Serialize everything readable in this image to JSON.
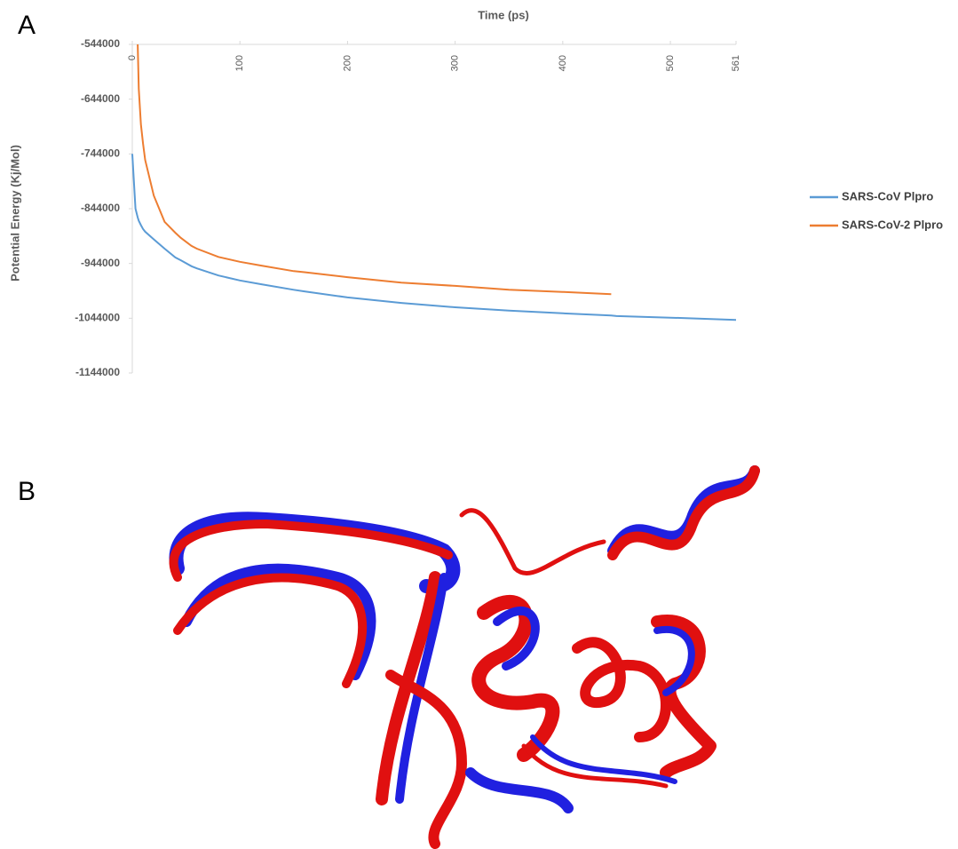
{
  "panel_labels": [
    "A",
    "B"
  ],
  "chart_data": {
    "type": "line",
    "x_label": "Time (ps)",
    "y_label": "Potential Energy (Kj/Mol)",
    "x": [
      0,
      3,
      5,
      6,
      8,
      10,
      12,
      20,
      30,
      40,
      45,
      55,
      60,
      80,
      100,
      120,
      150,
      160,
      200,
      250,
      300,
      350,
      400,
      445,
      450,
      500,
      561
    ],
    "series": [
      {
        "name": "SARS-CoV Plpro",
        "color": "#5b9bd5",
        "values": [
          -744000,
          -844000,
          -860000,
          -866000,
          -874000,
          -881000,
          -886000,
          -900000,
          -917000,
          -933000,
          -938000,
          -949000,
          -953000,
          -966000,
          -975000,
          -982000,
          -992000,
          -995000,
          -1006000,
          -1016000,
          -1024000,
          -1030000,
          -1035000,
          -1039000,
          -1040000,
          -1043000,
          -1047000
        ]
      },
      {
        "name": "SARS-CoV-2 Plpro",
        "color": "#ed7d31",
        "values": [
          null,
          null,
          -544000,
          -625000,
          -690000,
          -725000,
          -755000,
          -820000,
          -868000,
          -888000,
          -897000,
          -912000,
          -917000,
          -932000,
          -941000,
          -948000,
          -958000,
          -960000,
          -969000,
          -979000,
          -985000,
          -992000,
          -996000,
          -1000000,
          null,
          null,
          null
        ]
      }
    ],
    "xlim": [
      0,
      561
    ],
    "xticks": [
      0,
      100,
      200,
      300,
      400,
      500,
      561
    ],
    "ylim": [
      -1144000,
      -544000
    ],
    "yticks": [
      -544000,
      -644000,
      -744000,
      -844000,
      -944000,
      -1044000,
      -1144000
    ],
    "legend": "right"
  }
}
